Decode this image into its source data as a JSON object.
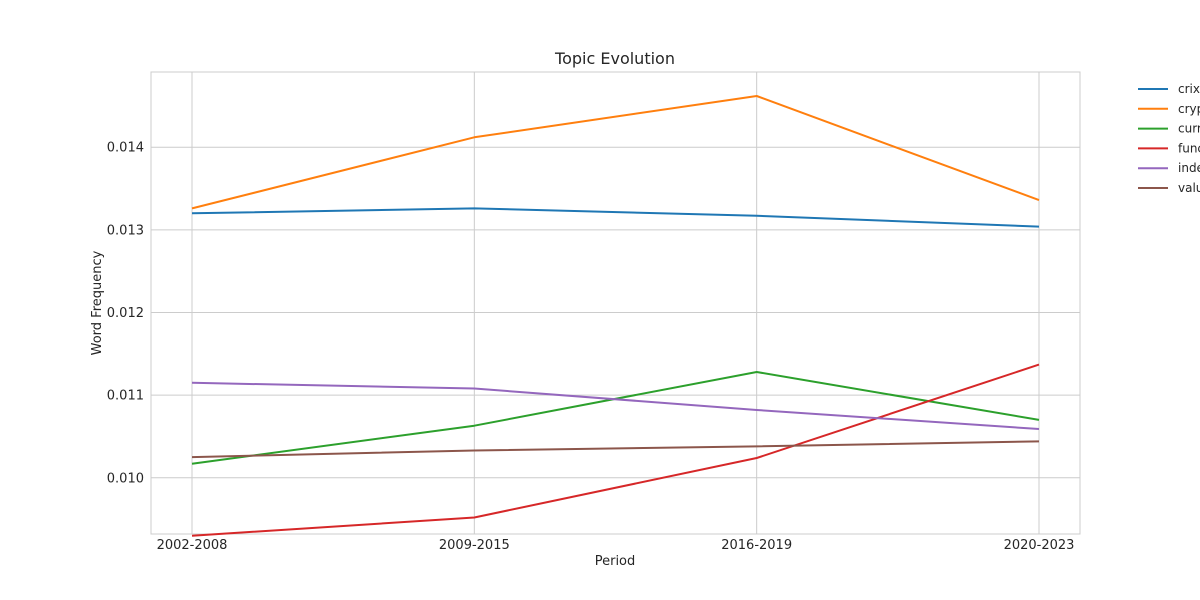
{
  "chart_data": {
    "type": "line",
    "title": "Topic Evolution",
    "xlabel": "Period",
    "ylabel": "Word Frequency",
    "categories": [
      "2002-2008",
      "2009-2015",
      "2016-2019",
      "2020-2023"
    ],
    "ylim": [
      0.00932,
      0.01491
    ],
    "yticks": [
      0.01,
      0.011,
      0.012,
      0.013,
      0.014
    ],
    "ytick_labels": [
      "0.010",
      "0.011",
      "0.012",
      "0.013",
      "0.014"
    ],
    "grid": true,
    "legend_position": "outside-right",
    "series": [
      {
        "name": "crix",
        "color": "#1f77b4",
        "values": [
          0.0132,
          0.01326,
          0.01317,
          0.01304
        ]
      },
      {
        "name": "cryp",
        "color": "#ff7f0e",
        "values": [
          0.01326,
          0.01412,
          0.01462,
          0.01336
        ]
      },
      {
        "name": "curr",
        "color": "#2ca02c",
        "values": [
          0.01017,
          0.01063,
          0.01128,
          0.0107
        ]
      },
      {
        "name": "func",
        "color": "#d62728",
        "values": [
          0.0093,
          0.00952,
          0.01024,
          0.01137
        ]
      },
      {
        "name": "inde",
        "color": "#9467bd",
        "values": [
          0.01115,
          0.01108,
          0.01082,
          0.01059
        ]
      },
      {
        "name": "valu",
        "color": "#8c564b",
        "values": [
          0.01025,
          0.01033,
          0.01038,
          0.01044
        ]
      }
    ]
  }
}
